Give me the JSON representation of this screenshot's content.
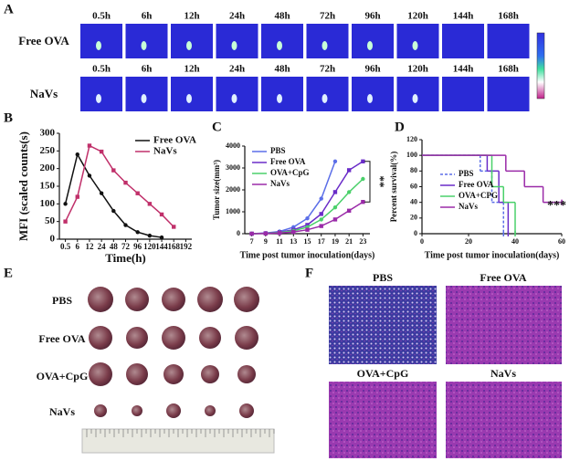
{
  "panel_labels": [
    "A",
    "B",
    "C",
    "D",
    "E",
    "F"
  ],
  "imaging": {
    "times": [
      "0.5h",
      "6h",
      "12h",
      "24h",
      "48h",
      "72h",
      "96h",
      "120h",
      "144h",
      "168h"
    ],
    "rows": [
      "Free OVA",
      "NaVs"
    ]
  },
  "tumors": {
    "rows": [
      "PBS",
      "Free OVA",
      "OVA+CpG",
      "NaVs"
    ]
  },
  "histology": {
    "titles": [
      "PBS",
      "Free OVA",
      "OVA+CpG",
      "NaVs"
    ]
  },
  "chart_data": [
    {
      "type": "line",
      "ylabel": "MFI (scaled counts(s)",
      "xlabel": "Time(h)",
      "categories": [
        "0.5",
        "6",
        "12",
        "24",
        "48",
        "72",
        "96",
        "120",
        "144",
        "168",
        "192"
      ],
      "ylim": [
        0,
        300
      ],
      "yticks": [
        0,
        50,
        100,
        150,
        200,
        250,
        300
      ],
      "legend": "upper right",
      "series": [
        {
          "name": "Free OVA",
          "color": "#111111",
          "values": [
            100,
            240,
            180,
            130,
            80,
            40,
            20,
            10,
            5,
            null,
            null
          ]
        },
        {
          "name": "NaVs",
          "color": "#c0306a",
          "values": [
            50,
            120,
            265,
            248,
            195,
            160,
            130,
            100,
            70,
            35,
            null
          ]
        }
      ]
    },
    {
      "type": "line",
      "ylabel": "Tumor size(mm³)",
      "xlabel": "Time post tumor inoculation(days)",
      "x": [
        7,
        9,
        11,
        13,
        15,
        17,
        19,
        21,
        23
      ],
      "xlim": [
        6,
        24
      ],
      "xticks": [
        7,
        9,
        11,
        13,
        15,
        17,
        19,
        21,
        23
      ],
      "ylim": [
        0,
        4000
      ],
      "yticks": [
        0,
        1000,
        2000,
        3000,
        4000
      ],
      "legend": "upper left",
      "annotations": [
        "**"
      ],
      "series": [
        {
          "name": "PBS",
          "color": "#5b6ee8",
          "values": [
            0,
            30,
            100,
            300,
            700,
            1600,
            3300,
            null,
            null
          ]
        },
        {
          "name": "Free OVA",
          "color": "#6a2cc8",
          "values": [
            0,
            20,
            70,
            180,
            400,
            900,
            1900,
            2900,
            3300
          ]
        },
        {
          "name": "OVA+CpG",
          "color": "#4ad06a",
          "values": [
            0,
            15,
            50,
            130,
            300,
            650,
            1200,
            1900,
            2500
          ]
        },
        {
          "name": "NaVs",
          "color": "#9a2aa8",
          "values": [
            0,
            10,
            30,
            80,
            180,
            350,
            650,
            1050,
            1450
          ]
        }
      ]
    },
    {
      "type": "step",
      "ylabel": "Percent survival(%)",
      "xlabel": "Time post tumor inoculation(days)",
      "xlim": [
        0,
        60
      ],
      "xticks": [
        0,
        20,
        40,
        60
      ],
      "ylim": [
        0,
        120
      ],
      "yticks": [
        0,
        20,
        40,
        60,
        80,
        100,
        120
      ],
      "legend": "center left",
      "annotations": [
        "***"
      ],
      "series": [
        {
          "name": "PBS",
          "color": "#5b6ee8",
          "dash": true,
          "x": [
            0,
            25,
            30,
            35
          ],
          "values": [
            100,
            80,
            40,
            0
          ]
        },
        {
          "name": "Free OVA",
          "color": "#6a2cc8",
          "x": [
            0,
            28,
            33,
            37
          ],
          "values": [
            100,
            80,
            40,
            0
          ]
        },
        {
          "name": "OVA+CPG",
          "color": "#4ad06a",
          "x": [
            0,
            30,
            35,
            40
          ],
          "values": [
            100,
            60,
            40,
            0
          ]
        },
        {
          "name": "NaVs",
          "color": "#9a2aa8",
          "x": [
            0,
            36,
            44,
            52,
            60
          ],
          "values": [
            100,
            80,
            60,
            40,
            40
          ]
        }
      ]
    }
  ]
}
